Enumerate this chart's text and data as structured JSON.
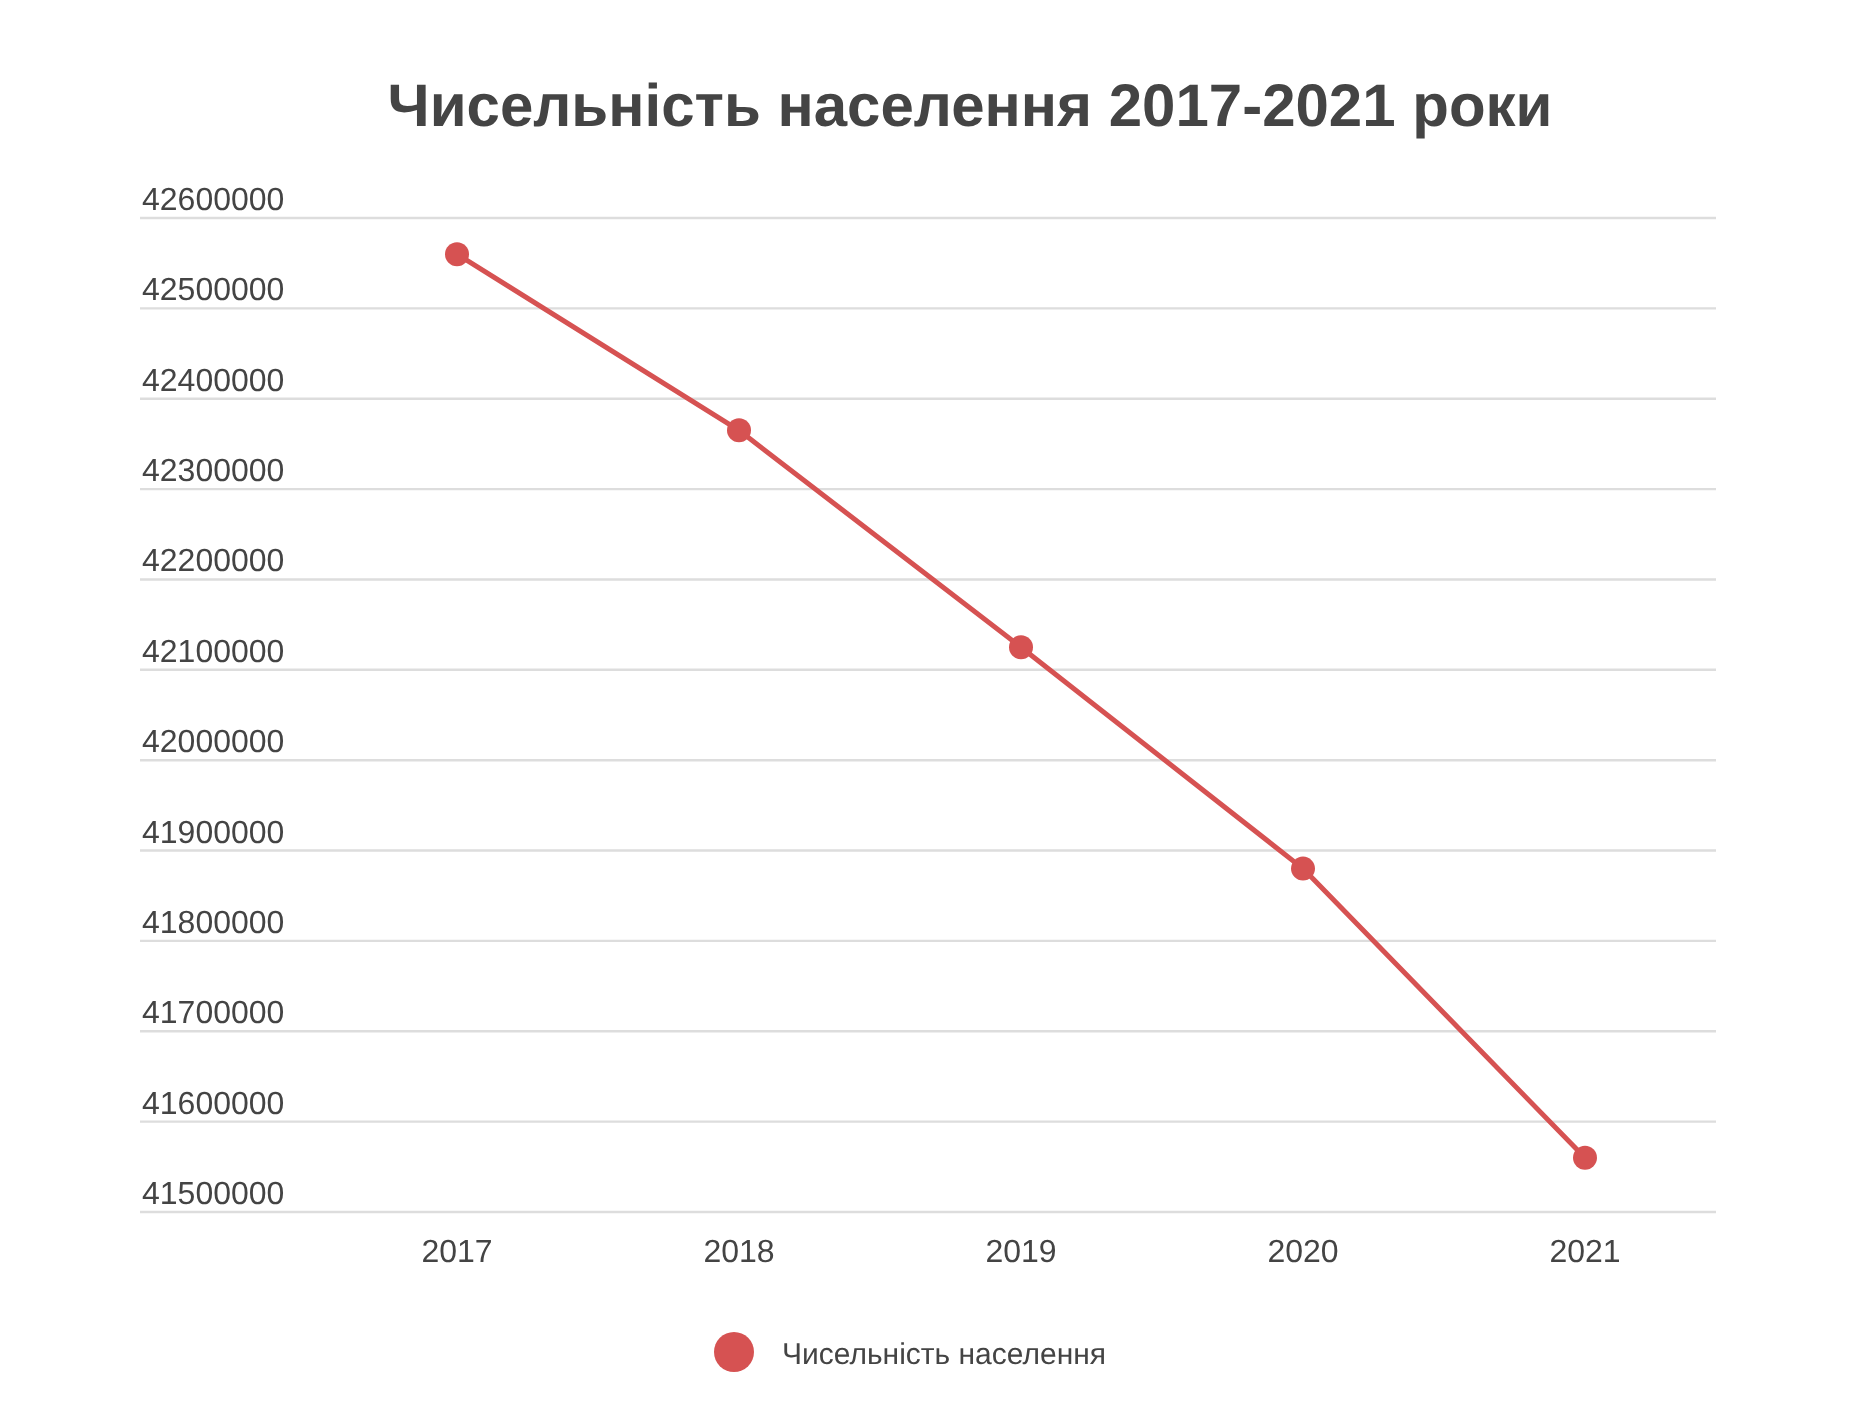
{
  "chart_data": {
    "type": "line",
    "title": "Чисельність населення 2017-2021 роки",
    "categories": [
      "2017",
      "2018",
      "2019",
      "2020",
      "2021"
    ],
    "series": [
      {
        "name": "Чисельність населення",
        "color": "#d65252",
        "values": [
          42560000,
          42365000,
          42125000,
          41880000,
          41560000
        ]
      }
    ],
    "ylim": [
      41500000,
      42600000
    ],
    "yticks": [
      41500000,
      41600000,
      41700000,
      41800000,
      41900000,
      42000000,
      42100000,
      42200000,
      42300000,
      42400000,
      42500000,
      42600000
    ],
    "grid": "y",
    "legend": "bottom",
    "marker": "circle",
    "line_style": "solid"
  }
}
